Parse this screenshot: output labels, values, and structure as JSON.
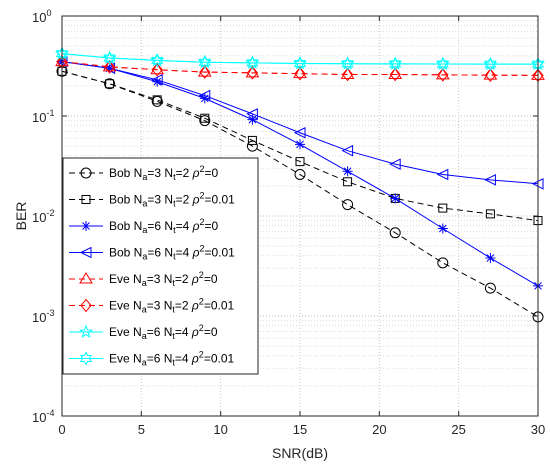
{
  "chart_data": {
    "type": "line",
    "xlabel": "SNR(dB)",
    "ylabel": "BER",
    "xlim": [
      0,
      30
    ],
    "ylim": [
      0.0001,
      1
    ],
    "y_scale": "log",
    "grid": "on (major and minor, dotted)",
    "legend_placement": "lower-left",
    "x_ticks": [
      "0",
      "5",
      "10",
      "15",
      "20",
      "25",
      "30"
    ],
    "y_ticks": [
      {
        "base": "10",
        "exp": "-4"
      },
      {
        "base": "10",
        "exp": "-3"
      },
      {
        "base": "10",
        "exp": "-2"
      },
      {
        "base": "10",
        "exp": "-1"
      },
      {
        "base": "10",
        "exp": "0"
      }
    ],
    "x": [
      0,
      3,
      6,
      9,
      12,
      15,
      18,
      21,
      24,
      27,
      30
    ],
    "series": [
      {
        "name": "Bob Na=3 Nt=2 ρ²=0",
        "label": {
          "who": "Bob",
          "na": "3",
          "nt": "2",
          "rho": "0"
        },
        "color": "#000000",
        "dash": "dashed",
        "marker": "circle",
        "values": [
          0.28,
          0.21,
          0.14,
          0.09,
          0.05,
          0.026,
          0.013,
          0.0068,
          0.0034,
          0.0019,
          0.00098
        ]
      },
      {
        "name": "Bob Na=3 Nt=2 ρ²=0.01",
        "label": {
          "who": "Bob",
          "na": "3",
          "nt": "2",
          "rho": "0.01"
        },
        "color": "#000000",
        "dash": "dashed",
        "marker": "square",
        "values": [
          0.28,
          0.21,
          0.145,
          0.095,
          0.057,
          0.035,
          0.022,
          0.015,
          0.012,
          0.0105,
          0.009
        ]
      },
      {
        "name": "Bob Na=6 Nt=4 ρ²=0",
        "label": {
          "who": "Bob",
          "na": "6",
          "nt": "4",
          "rho": "0"
        },
        "color": "#0000ff",
        "dash": "solid",
        "marker": "asterisk",
        "values": [
          0.35,
          0.3,
          0.22,
          0.15,
          0.092,
          0.052,
          0.028,
          0.015,
          0.0075,
          0.0038,
          0.002
        ]
      },
      {
        "name": "Bob Na=6 Nt=4 ρ²=0.01",
        "label": {
          "who": "Bob",
          "na": "6",
          "nt": "4",
          "rho": "0.01"
        },
        "color": "#0000ff",
        "dash": "solid",
        "marker": "triangle-left",
        "values": [
          0.35,
          0.3,
          0.23,
          0.16,
          0.105,
          0.068,
          0.045,
          0.033,
          0.026,
          0.023,
          0.021
        ]
      },
      {
        "name": "Eve Na=3 Nt=2 ρ²=0",
        "label": {
          "who": "Eve",
          "na": "3",
          "nt": "2",
          "rho": "0"
        },
        "color": "#ff0000",
        "dash": "dashed",
        "marker": "triangle-up",
        "values": [
          0.35,
          0.31,
          0.29,
          0.275,
          0.27,
          0.265,
          0.26,
          0.26,
          0.258,
          0.256,
          0.255
        ]
      },
      {
        "name": "Eve Na=3 Nt=2 ρ²=0.01",
        "label": {
          "who": "Eve",
          "na": "3",
          "nt": "2",
          "rho": "0.01"
        },
        "color": "#ff0000",
        "dash": "dashed",
        "marker": "diamond",
        "values": [
          0.35,
          0.31,
          0.29,
          0.275,
          0.27,
          0.265,
          0.26,
          0.26,
          0.258,
          0.256,
          0.255
        ]
      },
      {
        "name": "Eve Na=6 Nt=4 ρ²=0",
        "label": {
          "who": "Eve",
          "na": "6",
          "nt": "4",
          "rho": "0"
        },
        "color": "#00ffff",
        "dash": "solid",
        "marker": "pentagram",
        "values": [
          0.42,
          0.38,
          0.36,
          0.345,
          0.34,
          0.335,
          0.333,
          0.332,
          0.331,
          0.33,
          0.33
        ]
      },
      {
        "name": "Eve Na=6 Nt=4 ρ²=0.01",
        "label": {
          "who": "Eve",
          "na": "6",
          "nt": "4",
          "rho": "0.01"
        },
        "color": "#00ffff",
        "dash": "solid",
        "marker": "hexagram",
        "values": [
          0.42,
          0.38,
          0.36,
          0.345,
          0.34,
          0.335,
          0.333,
          0.332,
          0.331,
          0.33,
          0.33
        ]
      }
    ]
  }
}
